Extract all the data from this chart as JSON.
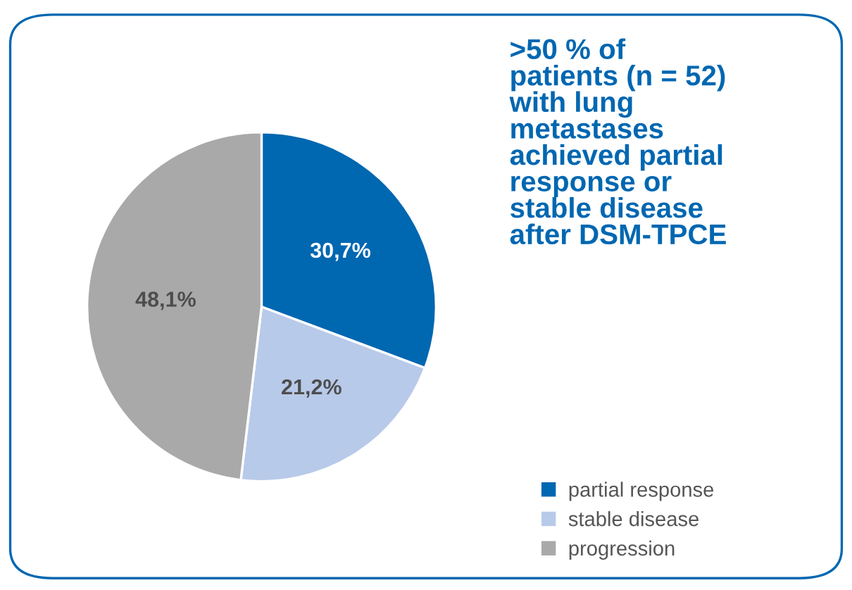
{
  "chart_data": {
    "type": "pie",
    "title": ">50 % of\npatients (n = 52)\nwith lung\nmetastases\nachieved partial\nresponse or\nstable disease\nafter DSM-TPCE",
    "categories": [
      "partial response",
      "stable disease",
      "progression"
    ],
    "values": [
      30.7,
      21.2,
      48.1
    ],
    "value_labels": [
      "30,7%",
      "21,2%",
      "48,1%"
    ],
    "colors": [
      "#0067b1",
      "#b8cae9",
      "#a9a9a9"
    ],
    "legend": "bottom right"
  }
}
